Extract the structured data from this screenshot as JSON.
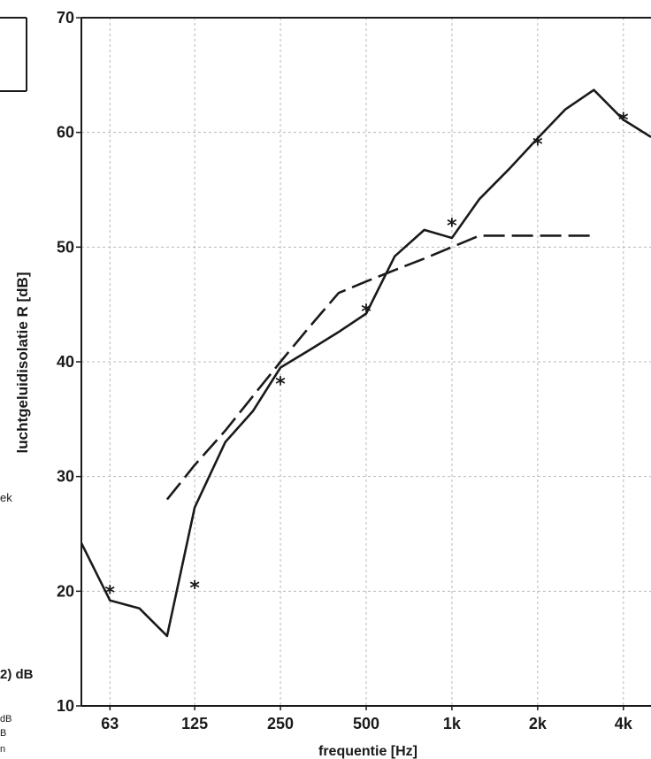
{
  "chart_data": {
    "type": "line",
    "xlabel": "frequentie [Hz]",
    "ylabel": "luchtgeluidisolatie R [dB]",
    "xscale": "log",
    "xlim": [
      50,
      5000
    ],
    "ylim": [
      10,
      70
    ],
    "yticks": [
      10,
      20,
      30,
      40,
      50,
      60,
      70
    ],
    "xticks": [
      {
        "value": 63,
        "label": "63"
      },
      {
        "value": 125,
        "label": "125"
      },
      {
        "value": 250,
        "label": "250"
      },
      {
        "value": 500,
        "label": "500"
      },
      {
        "value": 1000,
        "label": "1k"
      },
      {
        "value": 2000,
        "label": "2k"
      },
      {
        "value": 4000,
        "label": "4k"
      }
    ],
    "grid": true,
    "series": [
      {
        "style": "solid",
        "x": [
          50,
          63,
          80,
          100,
          125,
          160,
          200,
          250,
          315,
          400,
          500,
          630,
          800,
          1000,
          1250,
          1600,
          2000,
          2500,
          3150,
          4000,
          5000
        ],
        "y": [
          24.2,
          19.2,
          18.5,
          16.1,
          27.3,
          33.0,
          35.7,
          39.5,
          41.0,
          42.6,
          44.2,
          49.2,
          51.5,
          50.8,
          54.2,
          56.9,
          59.5,
          62.0,
          63.7,
          61.1,
          59.6
        ]
      },
      {
        "style": "dashed",
        "x": [
          100,
          125,
          160,
          200,
          250,
          315,
          400,
          500,
          630,
          800,
          1000,
          1250,
          1600,
          2000,
          2500,
          3150
        ],
        "y": [
          28,
          31,
          34,
          37,
          40,
          43,
          46,
          47,
          48,
          49,
          50,
          51,
          51,
          51,
          51,
          51
        ]
      },
      {
        "style": "markers",
        "marker": "*",
        "x": [
          63,
          125,
          250,
          500,
          1000,
          2000,
          4000
        ],
        "y": [
          20.0,
          20.4,
          38.2,
          44.5,
          52.0,
          59.1,
          61.2
        ]
      }
    ]
  },
  "side_panel": {
    "text_ek": "ek",
    "text_db_big": "2) dB",
    "text_db_small1": "dB",
    "text_db_small2": "B",
    "text_db_small3": "n"
  },
  "colors": {
    "line": "#1a1a1a",
    "grid": "#b8b8b8",
    "axis": "#1a1a1a"
  }
}
